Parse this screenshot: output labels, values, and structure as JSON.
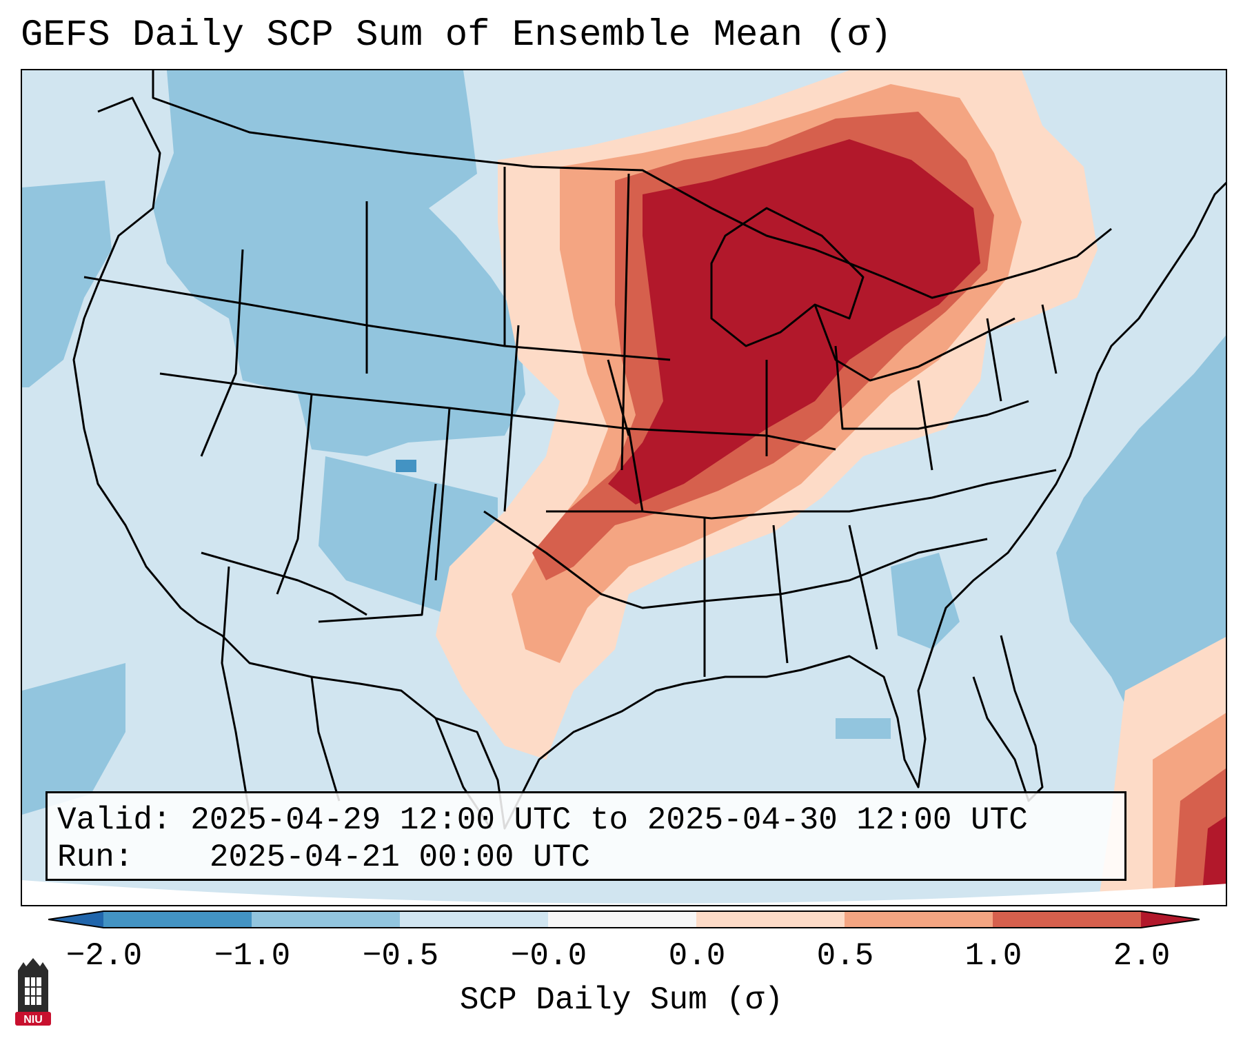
{
  "title": "GEFS Daily SCP Sum of Ensemble Mean (σ)",
  "info": {
    "valid_label": "Valid:",
    "valid_value": "2025-04-29 12:00 UTC to 2025-04-30 12:00 UTC",
    "run_label": "Run:",
    "run_value": "2025-04-21 00:00 UTC"
  },
  "colorbar": {
    "label": "SCP Daily Sum (σ)",
    "ticks": [
      "−2.0",
      "−1.0",
      "−0.5",
      "−0.0",
      "0.0",
      "0.5",
      "1.0",
      "2.0"
    ],
    "colors": {
      "under": "#2166ac",
      "bins": [
        "#4393c3",
        "#92c5de",
        "#d1e5f0",
        "#f7f7f7",
        "#fddbc7",
        "#f4a582",
        "#d6604d"
      ],
      "over": "#b2182b"
    }
  },
  "map": {
    "background": "#d1e5f0",
    "boundary_color": "#000000",
    "regions": {
      "max_anomaly": "#b2182b",
      "high_anomaly": "#d6604d",
      "moderate_anomaly": "#f4a582",
      "slight_anomaly": "#fddbc7",
      "negative_slight": "#92c5de"
    }
  },
  "logo": {
    "text": "NIU",
    "accent": "#c8102e"
  }
}
